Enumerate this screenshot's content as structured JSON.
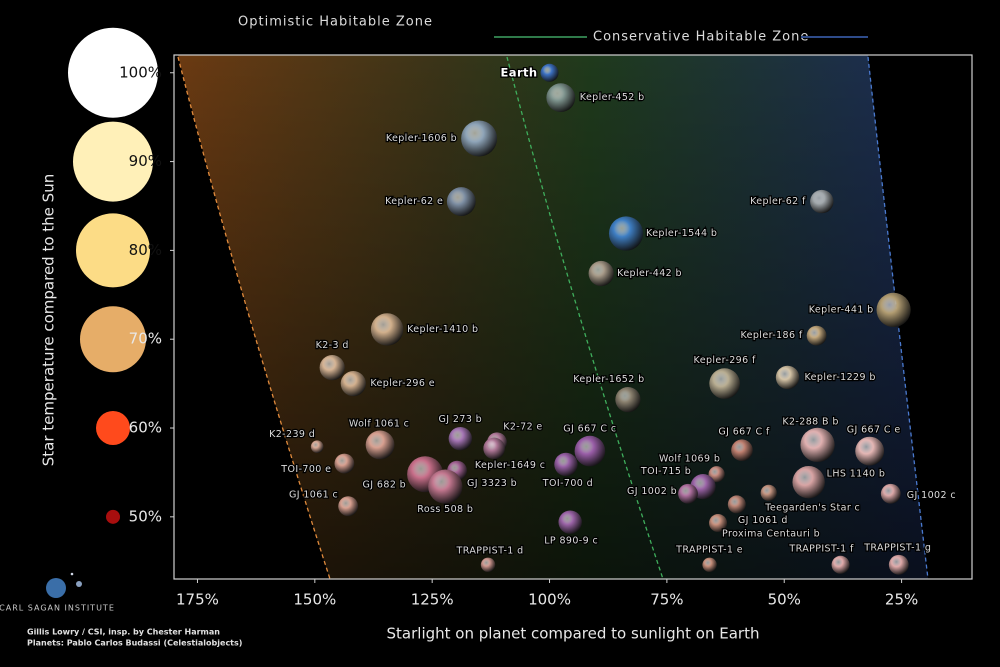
{
  "chart_data": {
    "type": "scatter",
    "legend": [
      "Optimistic Habitable Zone",
      "Conservative Habitable Zone"
    ],
    "x_label": "Starlight on planet compared to sunlight on Earth",
    "y_label": "Star temperature compared to the Sun",
    "credits": [
      "Gillis Lowry / CSI, insp. by Chester Harman",
      "Planets: Pablo Carlos Budassi (Celestialobjects)"
    ],
    "logo": "CARL SAGAN INSTITUTE",
    "xlim": [
      180,
      10
    ],
    "ylim": [
      43,
      102
    ],
    "xticks": [
      {
        "value": 175,
        "label": "175%"
      },
      {
        "value": 150,
        "label": "150%"
      },
      {
        "value": 125,
        "label": "125%"
      },
      {
        "value": 100,
        "label": "100%"
      },
      {
        "value": 75,
        "label": "75%"
      },
      {
        "value": 50,
        "label": "50%"
      },
      {
        "value": 25,
        "label": "25%"
      }
    ],
    "yticks": [
      {
        "value": 100,
        "label": "100%"
      },
      {
        "value": 90,
        "label": "90%"
      },
      {
        "value": 80,
        "label": "80%"
      },
      {
        "value": 70,
        "label": "70%"
      },
      {
        "value": 60,
        "label": "60%"
      },
      {
        "value": 50,
        "label": "50%"
      }
    ],
    "names": [
      "Earth",
      "Kepler-452 b",
      "Kepler-1606 b",
      "Kepler-62 e",
      "Kepler-1544 b",
      "Kepler-442 b",
      "Kepler-62 f",
      "Kepler-441 b",
      "Kepler-186 f",
      "Kepler-1410 b",
      "K2-3 d",
      "Kepler-296 e",
      "Kepler-1652 b",
      "Kepler-296 f",
      "Kepler-1229 b",
      "K2-239 d",
      "Wolf 1061 c",
      "GJ 273 b",
      "K2-72 e",
      "GJ 667 C c",
      "Kepler-1649 c",
      "TOI-700 e",
      "GJ 682 b",
      "GJ 3323 b",
      "Ross 508 b",
      "TOI-700 d",
      "GJ 1061 c",
      "LP 890-9 c",
      "TRAPPIST-1 d",
      "GJ 667 C f",
      "K2-288 B b",
      "GJ 667 C e",
      "Wolf 1069 b",
      "TOI-715 b",
      "GJ 1002 b",
      "LHS 1140 b",
      "Teegarden's Star c",
      "GJ 1061 d",
      "Proxima Centauri b",
      "GJ 1002 c",
      "TRAPPIST-1 e",
      "TRAPPIST-1 f",
      "TRAPPIST-1 g"
    ],
    "x": [
      100,
      97.6,
      115,
      118.8,
      83.7,
      89,
      42,
      26.7,
      43.1,
      134.6,
      146.3,
      141.8,
      83.3,
      62.7,
      49.3,
      149.5,
      136.1,
      119,
      111.2,
      91.4,
      111.8,
      143.7,
      126.5,
      119.7,
      122.2,
      96.5,
      142.9,
      95.6,
      113.1,
      59,
      42.9,
      31.8,
      64.4,
      67.3,
      70.5,
      44.8,
      53.3,
      60.1,
      64.1,
      27.3,
      65.9,
      38,
      25.6
    ],
    "y": [
      100,
      97.2,
      92.6,
      85.5,
      81.9,
      77.4,
      85.5,
      73.3,
      70.4,
      71.1,
      66.8,
      65,
      63.2,
      65,
      65.7,
      57.9,
      58.1,
      58.8,
      58.4,
      57.4,
      57.7,
      56,
      54.8,
      55.2,
      53.4,
      55.9,
      51.2,
      49.4,
      44.6,
      57.5,
      58.1,
      57.4,
      54.8,
      53.4,
      52.6,
      53.9,
      52.7,
      51.4,
      49.3,
      52.6,
      44.6,
      44.6,
      44.6
    ],
    "sizes": [
      1.0,
      1.6,
      2.0,
      1.6,
      1.9,
      1.4,
      1.3,
      1.9,
      1.1,
      1.8,
      1.4,
      1.4,
      1.4,
      1.7,
      1.3,
      0.7,
      1.6,
      1.3,
      1.1,
      1.7,
      1.2,
      1.1,
      2.0,
      1.1,
      1.9,
      1.3,
      1.1,
      1.3,
      0.8,
      1.2,
      1.9,
      1.6,
      0.9,
      1.4,
      1.1,
      1.8,
      0.9,
      1.0,
      1.0,
      1.1,
      0.8,
      1.0,
      1.1
    ],
    "colors": [
      "#3d72c4",
      "#7f958f",
      "#8ea4b8",
      "#7d8ea3",
      "#3f7fc4",
      "#a79a88",
      "#a2a8ac",
      "#b29d72",
      "#c4a97e",
      "#d2b08c",
      "#d6b494",
      "#d3b08e",
      "#8c8270",
      "#b9ae92",
      "#d4c3a6",
      "#d8a894",
      "#d8a090",
      "#a474b4",
      "#b47c9c",
      "#9a5ea8",
      "#b07898",
      "#d8a090",
      "#c86f8a",
      "#a56496",
      "#c47890",
      "#9a62a8",
      "#d8a090",
      "#9c64a8",
      "#d09890",
      "#c08070",
      "#e0b0b0",
      "#e4b6b4",
      "#c88c80",
      "#9c64a8",
      "#b070a0",
      "#d8a4a4",
      "#c49480",
      "#c08878",
      "#c8907c",
      "#dca8a8",
      "#c8907c",
      "#e0aaaa",
      "#e0aaaa"
    ]
  }
}
